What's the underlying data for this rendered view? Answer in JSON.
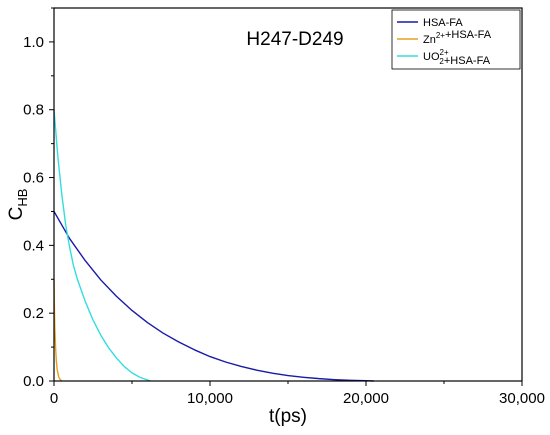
{
  "chart_data": {
    "type": "line",
    "title": "H247-D249",
    "xlabel": "t(ps)",
    "ylabel": {
      "main": "C",
      "sub": "HB"
    },
    "xlim": [
      0,
      30000
    ],
    "ylim": [
      0,
      1.1
    ],
    "x_ticks": [
      0,
      10000,
      20000,
      30000
    ],
    "x_tick_labels": [
      "0",
      "10,000",
      "20,000",
      "30,000"
    ],
    "y_ticks": [
      0,
      0.2,
      0.4,
      0.6,
      0.8,
      1.0
    ],
    "y_tick_labels": [
      "0.0",
      "0.2",
      "0.4",
      "0.6",
      "0.8",
      "1.0"
    ],
    "legend_position": "top-right",
    "series": [
      {
        "name": "HSA-FA",
        "legend_parts": [
          {
            "text": "HSA-FA",
            "sup": "",
            "sub": ""
          }
        ],
        "color": "#1a1aa8",
        "x": [
          0,
          1000,
          2000,
          3000,
          4000,
          5000,
          6000,
          7000,
          8000,
          9000,
          10000,
          11000,
          12000,
          13000,
          14000,
          15000,
          16000,
          17000,
          18000,
          19000,
          20000,
          20500
        ],
        "y": [
          0.5,
          0.42,
          0.355,
          0.298,
          0.25,
          0.208,
          0.172,
          0.141,
          0.115,
          0.092,
          0.072,
          0.056,
          0.043,
          0.032,
          0.023,
          0.016,
          0.011,
          0.007,
          0.004,
          0.002,
          0.001,
          0.0
        ]
      },
      {
        "name": "Zn2++HSA-FA",
        "legend_parts": [
          {
            "text": "Zn",
            "sup": "2+",
            "sub": ""
          },
          {
            "text": "+HSA-FA",
            "sup": "",
            "sub": ""
          }
        ],
        "color": "#e6a020",
        "x": [
          0,
          20,
          50,
          100,
          150,
          200,
          300,
          400,
          500
        ],
        "y": [
          0.3,
          0.23,
          0.16,
          0.1,
          0.06,
          0.035,
          0.012,
          0.004,
          0.0
        ]
      },
      {
        "name": "UO22++HSA-FA",
        "legend_parts": [
          {
            "text": "UO",
            "sup": "2+",
            "sub": "2"
          },
          {
            "text": "+HSA-FA",
            "sup": "",
            "sub": ""
          }
        ],
        "color": "#33dddd",
        "x": [
          0,
          250,
          500,
          750,
          1000,
          1250,
          1500,
          2000,
          2500,
          3000,
          3500,
          4000,
          4500,
          5000,
          5500,
          6000,
          6200
        ],
        "y": [
          0.8,
          0.66,
          0.55,
          0.46,
          0.395,
          0.34,
          0.3,
          0.235,
          0.18,
          0.135,
          0.098,
          0.068,
          0.043,
          0.024,
          0.011,
          0.003,
          0.0
        ]
      }
    ]
  }
}
